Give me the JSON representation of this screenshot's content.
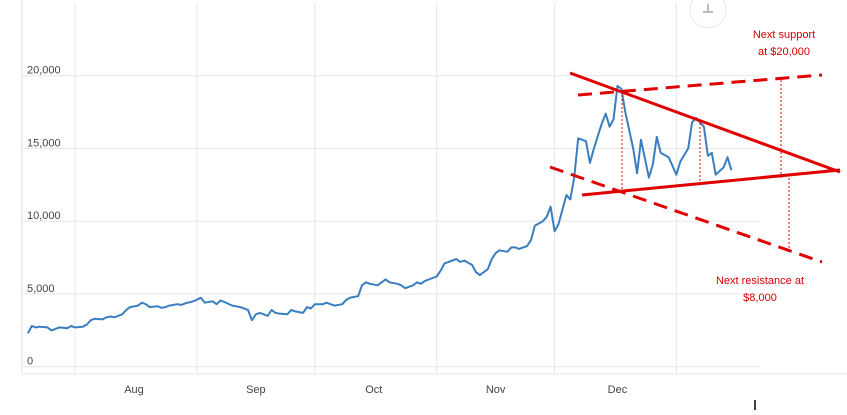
{
  "chart_data": {
    "type": "line",
    "x": [
      -12,
      -11,
      -10,
      -9,
      -7,
      -6,
      -5,
      -4,
      -2,
      -1,
      0,
      2,
      3,
      4,
      5,
      7,
      8,
      9,
      10,
      12,
      13,
      14,
      16,
      17,
      18,
      19,
      21,
      22,
      23,
      24,
      26,
      27,
      28,
      30,
      31,
      32,
      33,
      35,
      36,
      37,
      38,
      40,
      41,
      42,
      44,
      45,
      46,
      47,
      49,
      50,
      51,
      52,
      54,
      55,
      56,
      58,
      59,
      60,
      61,
      63,
      64,
      65,
      66,
      68,
      69,
      70,
      72,
      73,
      74,
      75,
      77,
      78,
      79,
      80,
      82,
      83,
      84,
      86,
      87,
      88,
      89,
      91,
      92,
      93,
      94,
      96,
      97,
      98,
      99,
      101,
      102,
      103,
      105,
      106,
      107,
      108,
      110,
      111,
      112,
      113,
      115,
      116,
      117,
      119,
      120,
      121,
      122,
      123,
      125,
      126,
      127,
      128,
      130,
      131,
      132,
      134,
      135,
      136,
      137,
      138,
      139,
      140,
      142,
      143,
      144,
      146,
      147,
      148,
      149,
      151,
      152,
      153,
      154,
      156,
      157,
      158,
      160,
      161,
      162,
      163,
      165,
      166,
      167
    ],
    "series": [
      {
        "color": "#3a7ebf",
        "values": [
          2300,
          2800,
          2700,
          2750,
          2700,
          2500,
          2600,
          2700,
          2650,
          2800,
          2700,
          2750,
          2900,
          3200,
          3300,
          3250,
          3400,
          3450,
          3400,
          3600,
          3900,
          4100,
          4200,
          4400,
          4300,
          4100,
          4150,
          4050,
          4100,
          4200,
          4300,
          4250,
          4350,
          4500,
          4600,
          4750,
          4400,
          4500,
          4300,
          4550,
          4450,
          4200,
          4150,
          4100,
          3900,
          3200,
          3600,
          3700,
          3500,
          3900,
          3700,
          3650,
          3600,
          3900,
          3800,
          3700,
          4100,
          4000,
          4300,
          4300,
          4400,
          4300,
          4200,
          4300,
          4600,
          4750,
          4850,
          5600,
          5800,
          5700,
          5600,
          5800,
          6000,
          5800,
          5700,
          5600,
          5400,
          5600,
          5800,
          5700,
          5900,
          6100,
          6200,
          6600,
          7100,
          7300,
          7400,
          7200,
          7300,
          7000,
          6500,
          6300,
          6700,
          7400,
          7800,
          8000,
          7900,
          8200,
          8200,
          8100,
          8300,
          8700,
          9700,
          10000,
          10300,
          11000,
          9300,
          9800,
          11800,
          11500,
          13000,
          15700,
          15500,
          14000,
          15000,
          16700,
          17400,
          16500,
          17000,
          19300,
          19100,
          17500,
          15000,
          13300,
          15600,
          13000,
          13900,
          15800,
          14700,
          14400,
          13800,
          13200,
          14100,
          15000,
          16800,
          17100,
          16500,
          14500,
          14700,
          13200,
          13700,
          14400,
          13500
        ]
      }
    ],
    "xlim": [
      -13.5,
      196.4
    ],
    "xticks": [
      {
        "value": 15,
        "label": "Aug"
      },
      {
        "value": 46,
        "label": "Sep"
      },
      {
        "value": 76,
        "label": "Oct"
      },
      {
        "value": 107,
        "label": "Nov"
      },
      {
        "value": 138,
        "label": "Dec"
      }
    ],
    "xgrid": [
      0,
      31,
      61,
      92,
      122,
      153
    ],
    "ylim": [
      -500,
      25000
    ],
    "yticks": [
      0,
      {
        "value": 5000,
        "label": "5,000"
      },
      {
        "value": 10000,
        "label": "10,000"
      },
      {
        "value": 15000,
        "label": "15,000"
      },
      {
        "value": 20000,
        "label": "20,000"
      }
    ],
    "grid": true,
    "annotations": [
      {
        "lines": [
          "Next support",
          "at $20,000"
        ]
      },
      {
        "lines": [
          "Next resistance at",
          "$8,000"
        ]
      }
    ]
  }
}
